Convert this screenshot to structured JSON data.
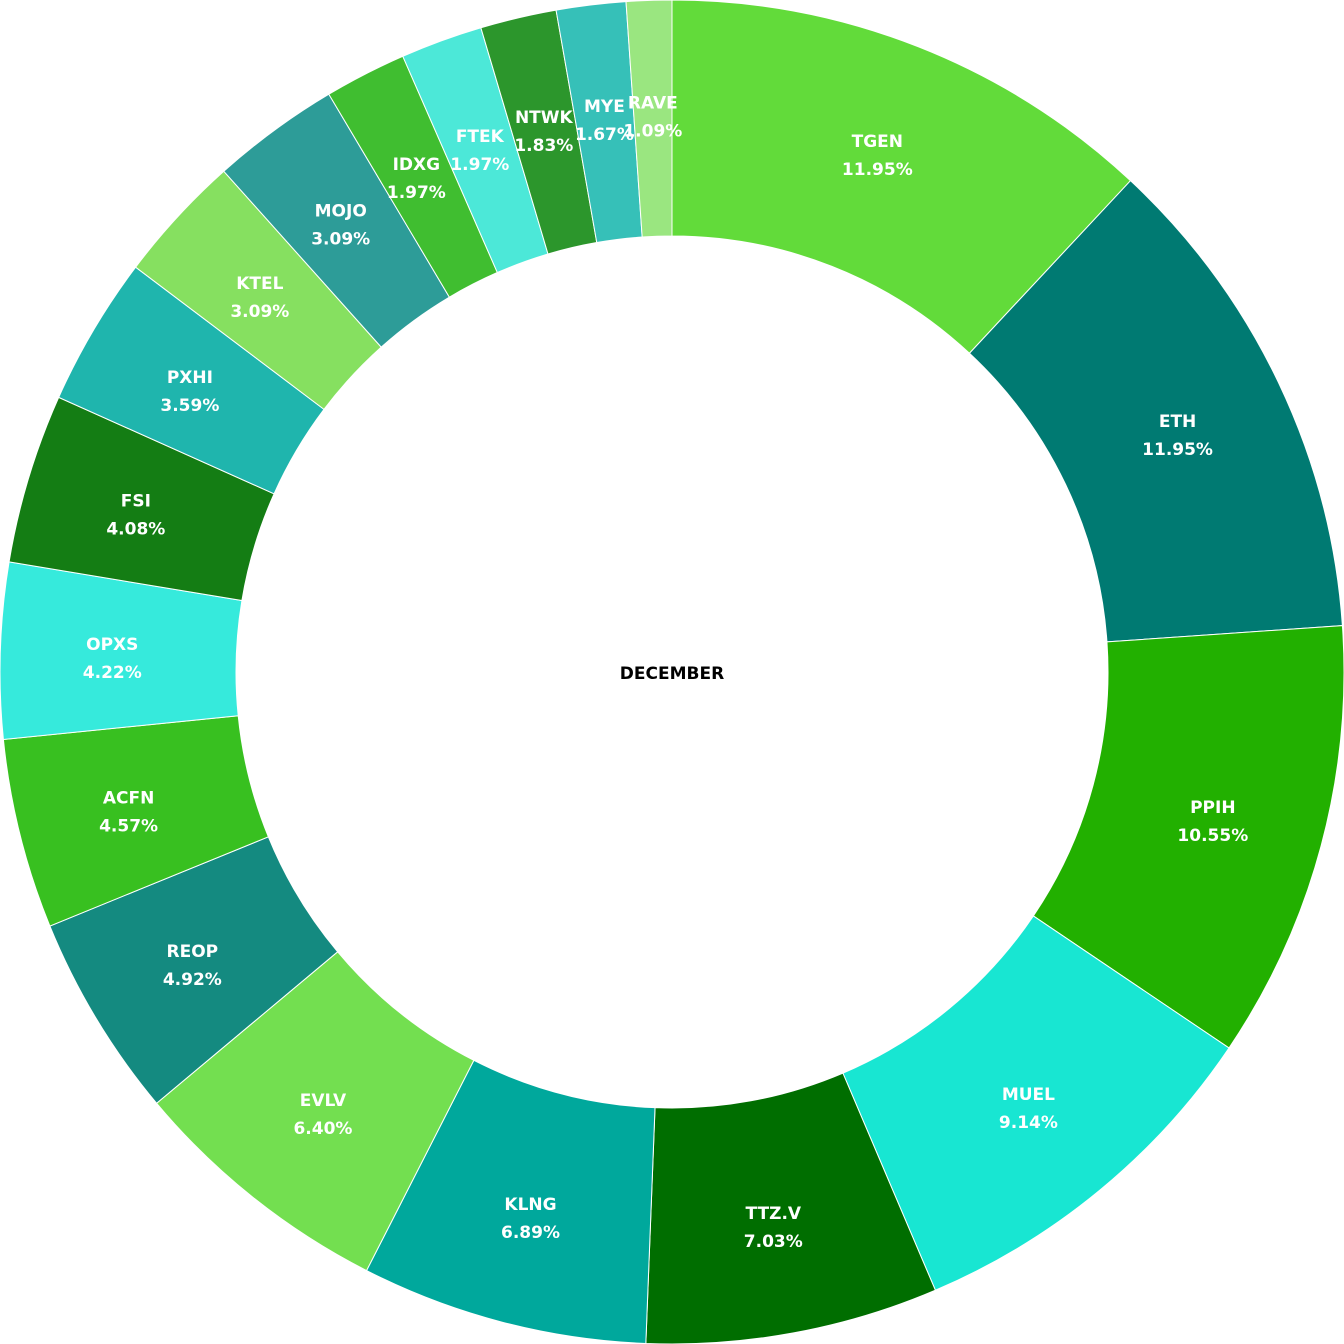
{
  "chart_data": {
    "type": "pie",
    "donut": true,
    "center_label": "DECEMBER",
    "categories": [
      "TGEN",
      "ETH",
      "PPIH",
      "MUEL",
      "TTZ.V",
      "KLNG",
      "EVLV",
      "REOP",
      "ACFN",
      "OPXS",
      "FSI",
      "PXHI",
      "KTEL",
      "MOJO",
      "IDXG",
      "FTEK",
      "NTWK",
      "MYE",
      "RAVE"
    ],
    "values": [
      11.95,
      11.95,
      10.55,
      9.14,
      7.03,
      6.89,
      6.4,
      4.92,
      4.57,
      4.22,
      4.08,
      3.59,
      3.09,
      3.09,
      1.97,
      1.97,
      1.83,
      1.67,
      1.09
    ],
    "value_labels": [
      "11.95%",
      "11.95%",
      "10.55%",
      "9.14%",
      "7.03%",
      "6.89%",
      "6.40%",
      "4.92%",
      "4.57%",
      "4.22%",
      "4.08%",
      "3.59%",
      "3.09%",
      "3.09%",
      "1.97%",
      "1.97%",
      "1.83%",
      "1.67%",
      "1.09%"
    ],
    "colors": [
      "#62db3a",
      "#007a72",
      "#22b000",
      "#18e6d2",
      "#006e00",
      "#00a89c",
      "#73df50",
      "#148a80",
      "#38c020",
      "#36eadc",
      "#147d14",
      "#1fb5ad",
      "#86e060",
      "#2d9c98",
      "#40be30",
      "#4ce8d8",
      "#2c962c",
      "#36c0b8",
      "#9ae680"
    ],
    "start_angle_deg": 0,
    "direction": "clockwise"
  }
}
